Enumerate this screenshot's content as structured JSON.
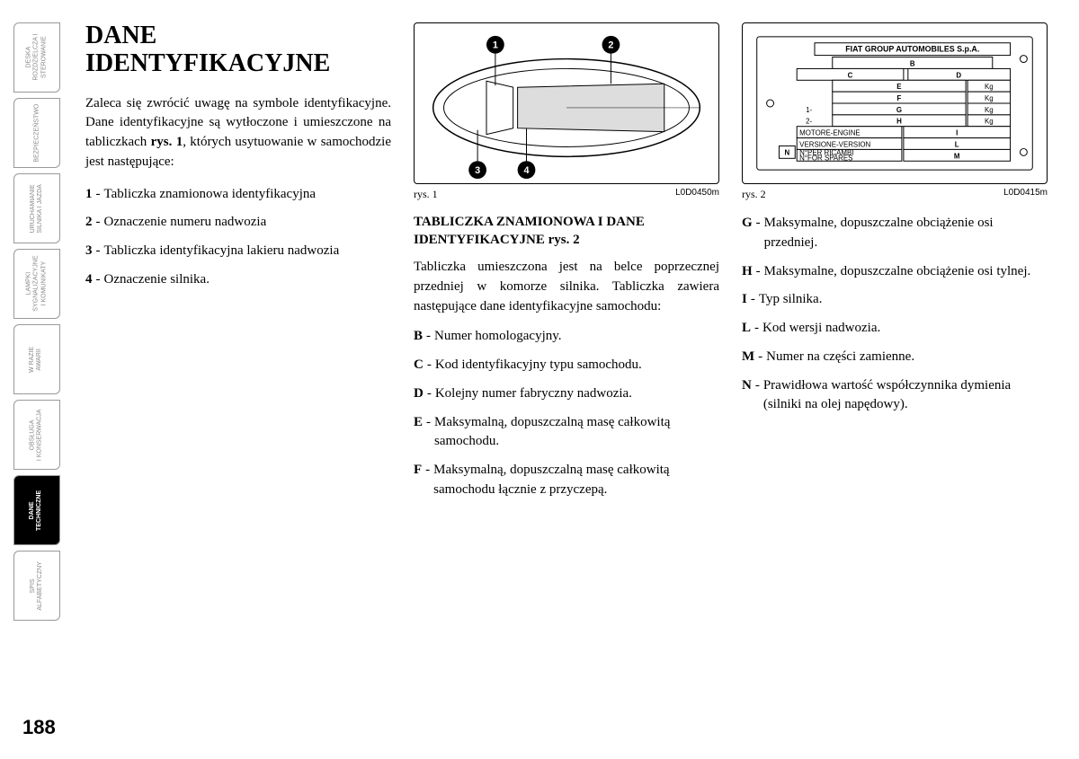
{
  "sidebar": {
    "tabs": [
      {
        "label": "DESKA\nROZDZIELCZA I\nSTEROWANIE",
        "active": false
      },
      {
        "label": "BEZPIECZEŃSTWO",
        "active": false
      },
      {
        "label": "URUCHAMIANIE\nSILNIKA I JAZDA",
        "active": false
      },
      {
        "label": "LAMPKI\nSYGNALIZACYJNE\nI KOMUNIKATY",
        "active": false
      },
      {
        "label": "W RAZIE\nAWARII",
        "active": false
      },
      {
        "label": "OBSŁUGA\nI KONSERWACJA",
        "active": false
      },
      {
        "label": "DANE\nTECHNICZNE",
        "active": true
      },
      {
        "label": "SPIS\nALFABETYCZNY",
        "active": false
      }
    ]
  },
  "col1": {
    "title": "DANE IDENTYFIKACYJNE",
    "intro_a": "Zaleca się zwrócić uwagę na symbole identyfikacyjne. Dane identyfikacyjne są wytłoczone i umieszczone na tabliczkach ",
    "intro_bold": "rys. 1",
    "intro_b": ", których usytuowanie w samochodzie jest następujące:",
    "items": [
      {
        "num": "1",
        "text": "Tabliczka znamionowa identyfikacyjna"
      },
      {
        "num": "2",
        "text": "Oznaczenie numeru nadwozia"
      },
      {
        "num": "3",
        "text": "Tabliczka identyfikacyjna lakieru nadwozia"
      },
      {
        "num": "4",
        "text": "Oznaczenie silnika."
      }
    ]
  },
  "col2": {
    "fig_label": "rys. 1",
    "fig_code": "L0D0450m",
    "subtitle": "TABLICZKA ZNAMIONOWA I DANE IDENTYFIKACYJNE rys. 2",
    "para": "Tabliczka umieszczona jest na belce poprzecznej przedniej w komorze silnika. Tabliczka zawiera następujące dane identyfikacyjne samochodu:",
    "items": [
      {
        "num": "B",
        "text": "Numer homologacyjny."
      },
      {
        "num": "C",
        "text": "Kod identyfikacyjny typu samochodu."
      },
      {
        "num": "D",
        "text": "Kolejny numer fabryczny nadwozia."
      },
      {
        "num": "E",
        "text": "Maksymalną, dopuszczalną masę całkowitą samochodu."
      },
      {
        "num": "F",
        "text": "Maksymalną, dopuszczalną masę całkowitą samochodu łącznie z przyczepą."
      }
    ]
  },
  "col3": {
    "fig_label": "rys. 2",
    "fig_code": "L0D0415m",
    "plate": {
      "header": "FIAT GROUP AUTOMOBILES S.p.A.",
      "rows": [
        {
          "left": "",
          "mid": "B",
          "right": ""
        },
        {
          "left": "C",
          "mid": "",
          "right": "D"
        },
        {
          "left": "",
          "mid": "E",
          "right": "Kg"
        },
        {
          "left": "",
          "mid": "F",
          "right": "Kg"
        },
        {
          "left": "1-",
          "mid": "G",
          "right": "Kg"
        },
        {
          "left": "2-",
          "mid": "H",
          "right": "Kg"
        },
        {
          "left": "MOTORE-ENGINE",
          "mid": "I",
          "right": ""
        },
        {
          "left": "VERSIONE-VERSION",
          "mid": "L",
          "right": ""
        },
        {
          "left": "N°PER RICAMBI\nN°FOR SPARES",
          "mid": "M",
          "right": ""
        }
      ],
      "n_label": "N"
    },
    "items": [
      {
        "num": "G",
        "text": "Maksymalne, dopuszczalne obciążenie osi przedniej."
      },
      {
        "num": "H",
        "text": "Maksymalne, dopuszczalne obciążenie osi tylnej."
      },
      {
        "num": "I",
        "text": "Typ silnika."
      },
      {
        "num": "L",
        "text": "Kod wersji nadwozia."
      },
      {
        "num": "M",
        "text": "Numer na części zamienne."
      },
      {
        "num": "N",
        "text": "Prawidłowa wartość współczynnika dymienia (silniki na olej napędowy)."
      }
    ]
  },
  "page_number": "188"
}
